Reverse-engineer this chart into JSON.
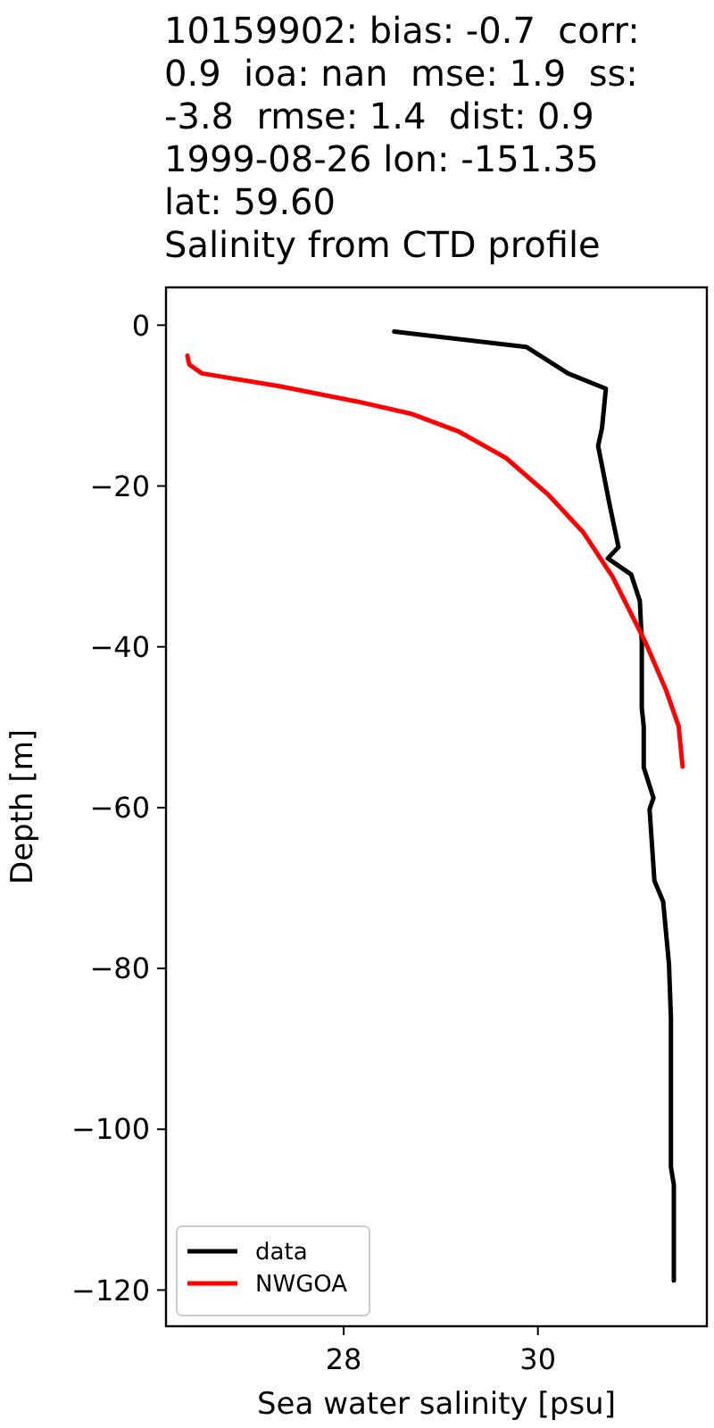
{
  "chart_data": {
    "type": "line",
    "title": "10159902: bias: -0.7  corr:\n0.9  ioa: nan  mse: 1.9  ss:\n-3.8  rmse: 1.4  dist: 0.9\n1999-08-26 lon: -151.35\nlat: 59.60\nSalinity from CTD profile",
    "xlabel": "Sea water salinity [psu]",
    "ylabel": "Depth [m]",
    "xlim": [
      26.17,
      31.74
    ],
    "xticks": [
      28,
      30
    ],
    "ylim": [
      -124.5,
      4.7
    ],
    "yticks": [
      0,
      -20,
      -40,
      -60,
      -80,
      -100,
      -120
    ],
    "legend": "bottom left",
    "grid": false,
    "series": [
      {
        "name": "data",
        "color": "#000000",
        "x": [
          28.52,
          29.88,
          30.31,
          30.7,
          30.66,
          30.62,
          30.74,
          30.83,
          30.72,
          30.96,
          31.05,
          31.07,
          31.07,
          31.09,
          31.09,
          31.19,
          31.15,
          31.2,
          31.29,
          31.35,
          31.37,
          31.37,
          31.4,
          31.4
        ],
        "values": [
          -0.8,
          -2.7,
          -6,
          -7.9,
          -12.8,
          -15,
          -22.4,
          -27.6,
          -29,
          -31,
          -34.3,
          -39.5,
          -47.6,
          -49.9,
          -55,
          -58.8,
          -60.2,
          -69.1,
          -71.7,
          -79.5,
          -86.2,
          -104.7,
          -106.9,
          -118.8
        ]
      },
      {
        "name": "NWGOA",
        "color": "#ff0000",
        "x": [
          26.39,
          26.41,
          26.54,
          27.34,
          28.14,
          28.69,
          29.18,
          29.67,
          30.1,
          30.47,
          30.77,
          31.11,
          31.32,
          31.45,
          31.49
        ],
        "values": [
          -3.8,
          -4.9,
          -6,
          -7.6,
          -9.5,
          -11,
          -13.2,
          -16.5,
          -21,
          -25.8,
          -31.3,
          -39.5,
          -45.4,
          -49.9,
          -54.9
        ]
      }
    ]
  }
}
